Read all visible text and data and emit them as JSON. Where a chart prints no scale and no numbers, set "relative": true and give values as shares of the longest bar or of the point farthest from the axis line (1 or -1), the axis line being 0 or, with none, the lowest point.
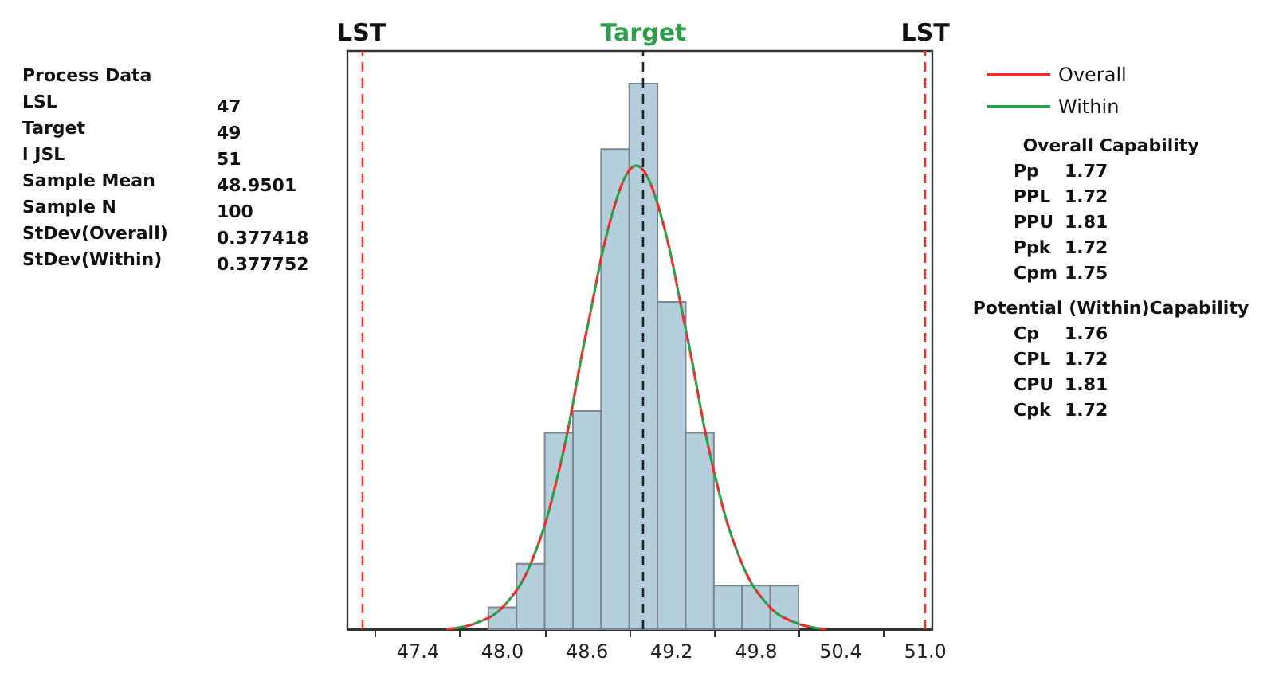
{
  "chart_data": {
    "type": "histogram",
    "relative": true,
    "bins": [
      47.9,
      48.1,
      48.3,
      48.5,
      48.7,
      48.9,
      49.1,
      49.3,
      49.5,
      49.7,
      49.9,
      50.1
    ],
    "values": [
      0.04,
      0.12,
      0.36,
      0.4,
      0.88,
      1,
      0.6,
      0.36,
      0.08,
      0.08,
      0.08
    ],
    "color": "#b4cedc",
    "series": [
      {
        "name": "Overall",
        "type": "line",
        "color": "#e8302a",
        "line_style": "dashed",
        "x": [
          47.6,
          47.8,
          48.0,
          48.2,
          48.4,
          48.6,
          48.8,
          48.95,
          49.1,
          49.3,
          49.5,
          49.7,
          49.9,
          50.1,
          50.3
        ],
        "values": [
          0.0,
          0.01,
          0.04,
          0.12,
          0.29,
          0.55,
          0.78,
          0.85,
          0.78,
          0.55,
          0.29,
          0.12,
          0.04,
          0.01,
          0.0
        ]
      },
      {
        "name": "Within",
        "type": "line",
        "color": "#2e9e4a",
        "line_style": "dashed",
        "x": [
          47.6,
          47.8,
          48.0,
          48.2,
          48.4,
          48.6,
          48.8,
          48.95,
          49.1,
          49.3,
          49.5,
          49.7,
          49.9,
          50.1,
          50.3
        ],
        "values": [
          0.0,
          0.01,
          0.04,
          0.12,
          0.29,
          0.55,
          0.78,
          0.85,
          0.78,
          0.55,
          0.29,
          0.12,
          0.04,
          0.01,
          0.0
        ]
      }
    ],
    "xlim": [
      46.9,
      51.05
    ],
    "xticks": [
      {
        "value": 47.1,
        "label": null
      },
      47.4,
      {
        "value": 47.7,
        "label": null
      },
      {
        "value": 48.0,
        "label": "48.0"
      },
      {
        "value": 48.3,
        "label": null
      },
      48.6,
      {
        "value": 48.9,
        "label": null
      },
      49.2,
      {
        "value": 49.5,
        "label": null
      },
      49.8,
      {
        "value": 50.1,
        "label": null
      },
      50.4,
      {
        "value": 50.7,
        "label": null
      },
      {
        "value": 51.0,
        "label": "51.0"
      }
    ],
    "ref_lines": [
      {
        "axis": "x",
        "value": 47,
        "label": "LST",
        "color": "#e8302a",
        "line_style": "dashed"
      },
      {
        "axis": "x",
        "value": 51,
        "label": "LST",
        "color": "#e8302a",
        "line_style": "dashed"
      },
      {
        "axis": "x",
        "value": 49,
        "label": "Target",
        "color": "#222222",
        "line_style": "dashed"
      }
    ],
    "legend": "right",
    "grid": false,
    "annotations": [
      "Process Data",
      "LSL\t47",
      "Target\t49",
      "l JSL\t51",
      "Sample Mean\t48.9501",
      "Sample N\t100",
      "StDev(Overall)\t0.377418",
      "StDev(Within)\t0.377752",
      "Overall Capability",
      "Pp\t1.77",
      "PPL\t1.72",
      "PPU\t1.81",
      "Ppk\t1.72",
      "Cpm\t1.75",
      "Potential (Within)Capability",
      "Cp\t1.76",
      "CPL\t1.72",
      "CPU\t1.81",
      "Cpk\t1.72"
    ]
  }
}
